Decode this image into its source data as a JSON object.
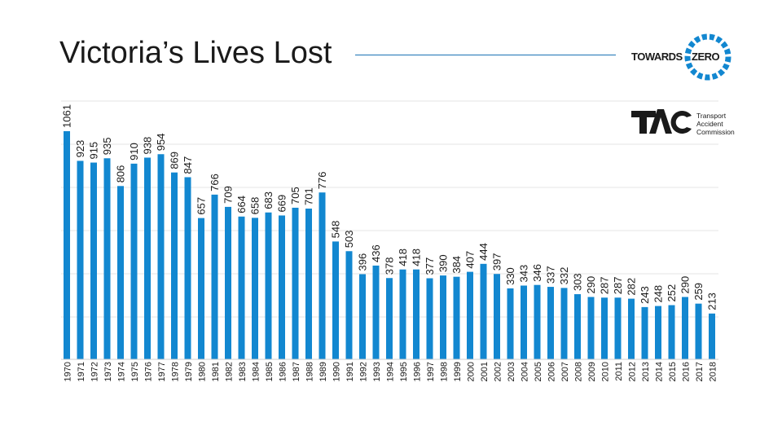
{
  "title": "Victoria’s Lives Lost",
  "logos": {
    "towards": "TOWARDS",
    "zero": "ZERO",
    "tac_org": [
      "Transport",
      "Accident",
      "Commission"
    ]
  },
  "colors": {
    "bar": "#1287d0",
    "grid": "#e6e6e6",
    "title_rule": "#1a73b5"
  },
  "chart_data": {
    "type": "bar",
    "title": "Victoria’s Lives Lost",
    "xlabel": "",
    "ylabel": "",
    "ylim": [
      0,
      1100
    ],
    "grid": true,
    "categories": [
      "1970",
      "1971",
      "1972",
      "1973",
      "1974",
      "1975",
      "1976",
      "1977",
      "1978",
      "1979",
      "1980",
      "1981",
      "1982",
      "1983",
      "1984",
      "1985",
      "1986",
      "1987",
      "1988",
      "1989",
      "1990",
      "1991",
      "1992",
      "1993",
      "1994",
      "1995",
      "1996",
      "1997",
      "1998",
      "1999",
      "2000",
      "2001",
      "2002",
      "2003",
      "2004",
      "2005",
      "2006",
      "2007",
      "2008",
      "2009",
      "2010",
      "2011",
      "2012",
      "2013",
      "2014",
      "2015",
      "2016",
      "2017",
      "2018"
    ],
    "values": [
      1061,
      923,
      915,
      935,
      806,
      910,
      938,
      954,
      869,
      847,
      657,
      766,
      709,
      664,
      658,
      683,
      669,
      705,
      701,
      776,
      548,
      503,
      396,
      436,
      378,
      418,
      418,
      377,
      390,
      384,
      407,
      444,
      397,
      330,
      343,
      346,
      337,
      332,
      303,
      290,
      287,
      287,
      282,
      243,
      248,
      252,
      290,
      259,
      213
    ]
  }
}
